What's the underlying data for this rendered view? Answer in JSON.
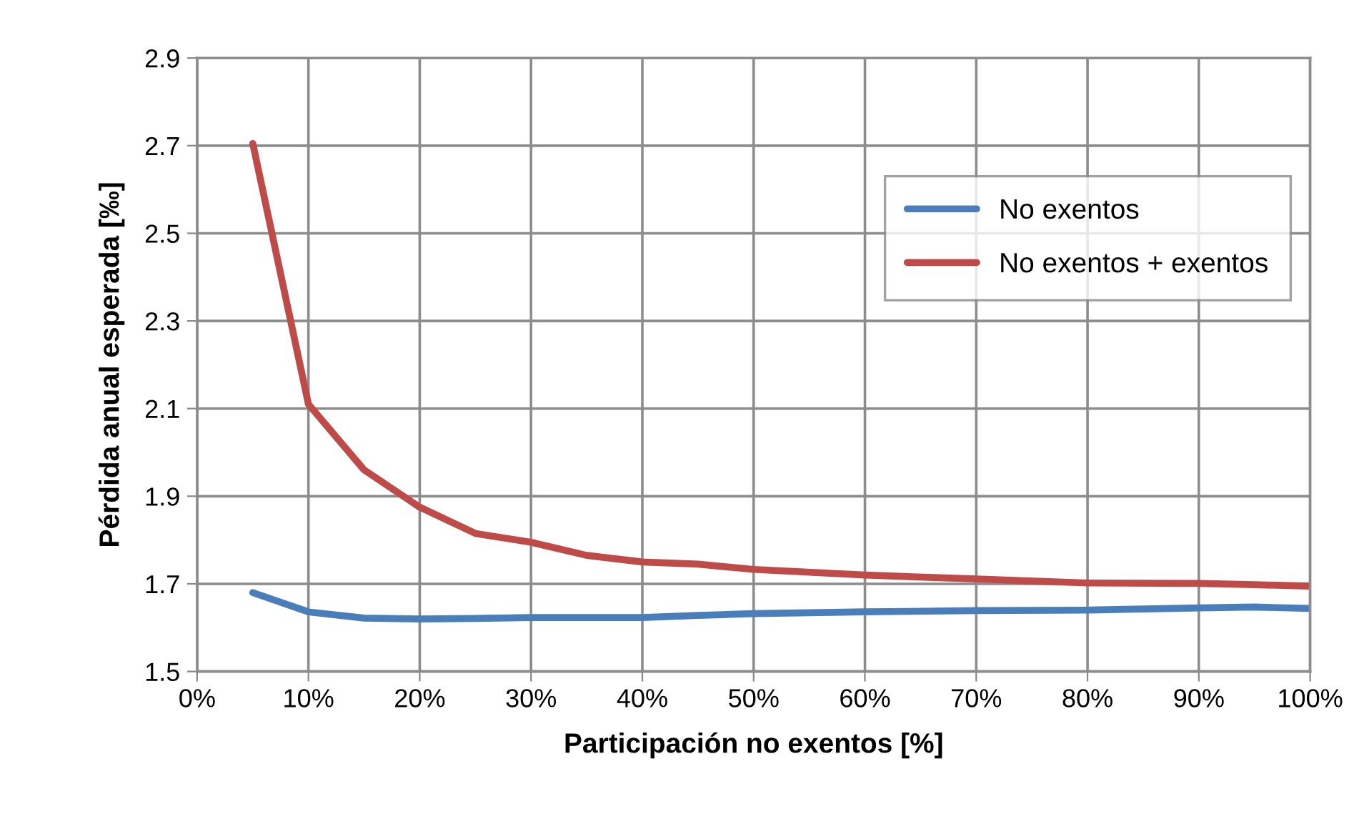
{
  "chart_data": {
    "type": "line",
    "xlabel": "Participación no exentos [%]",
    "ylabel": "Pérdida anual esperada [‰]",
    "xlim": [
      0,
      100
    ],
    "xticks": [
      {
        "value": 0,
        "label": "0%"
      },
      {
        "value": 10,
        "label": "10%"
      },
      {
        "value": 20,
        "label": "20%"
      },
      {
        "value": 30,
        "label": "30%"
      },
      {
        "value": 40,
        "label": "40%"
      },
      {
        "value": 50,
        "label": "50%"
      },
      {
        "value": 60,
        "label": "60%"
      },
      {
        "value": 70,
        "label": "70%"
      },
      {
        "value": 80,
        "label": "80%"
      },
      {
        "value": 90,
        "label": "90%"
      },
      {
        "value": 100,
        "label": "100%"
      }
    ],
    "ylim": [
      1.5,
      2.9
    ],
    "yticks": [
      1.5,
      1.7,
      1.9,
      2.1,
      2.3,
      2.5,
      2.7,
      2.9
    ],
    "grid": true,
    "legend": "top right",
    "marker": "none",
    "line_style": "solid",
    "x": [
      5,
      10,
      15,
      20,
      25,
      30,
      35,
      40,
      45,
      50,
      60,
      70,
      80,
      90,
      95,
      100
    ],
    "series": [
      {
        "name": "No exentos",
        "color": "#4a7ebb",
        "values": [
          1.68,
          1.636,
          1.622,
          1.62,
          1.621,
          1.623,
          1.623,
          1.623,
          1.628,
          1.632,
          1.636,
          1.639,
          1.64,
          1.645,
          1.647,
          1.644
        ]
      },
      {
        "name": "No exentos + exentos",
        "color": "#be4b48",
        "values": [
          2.705,
          2.11,
          1.96,
          1.875,
          1.815,
          1.795,
          1.765,
          1.75,
          1.745,
          1.733,
          1.72,
          1.711,
          1.702,
          1.701,
          1.698,
          1.695
        ]
      }
    ]
  }
}
